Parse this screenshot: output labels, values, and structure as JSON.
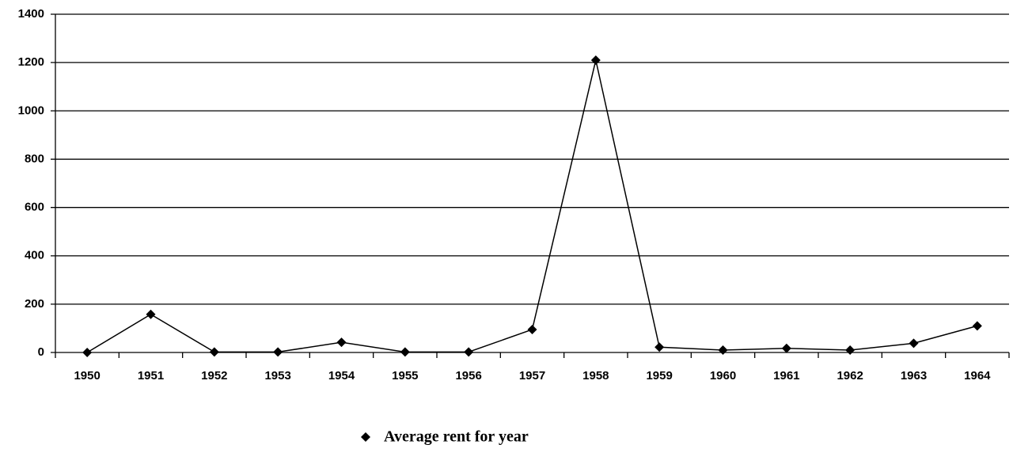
{
  "chart_data": {
    "type": "line",
    "categories": [
      "1950",
      "1951",
      "1952",
      "1953",
      "1954",
      "1955",
      "1956",
      "1957",
      "1958",
      "1959",
      "1960",
      "1961",
      "1962",
      "1963",
      "1964"
    ],
    "series": [
      {
        "name": "Average rent for year",
        "color": "#000000",
        "values": [
          0,
          158,
          2,
          2,
          42,
          2,
          2,
          95,
          1210,
          22,
          10,
          17,
          10,
          38,
          110
        ]
      }
    ],
    "ylim": [
      0,
      1400
    ],
    "yticks": [
      0,
      200,
      400,
      600,
      800,
      1000,
      1200,
      1400
    ],
    "grid": true,
    "legend": "bottom"
  }
}
